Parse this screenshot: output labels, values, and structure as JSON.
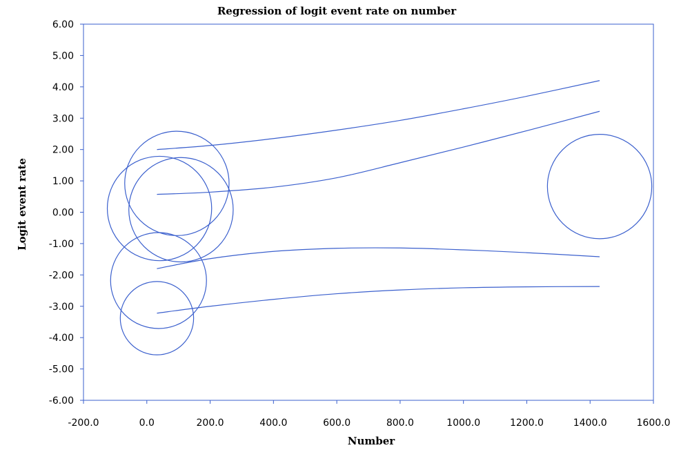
{
  "chart_data": {
    "type": "scatter",
    "title": "Regression of logit event rate on number",
    "xlabel": "Number",
    "ylabel": "Logit event rate",
    "xlim": [
      -200,
      1600
    ],
    "ylim": [
      -6,
      6
    ],
    "x_ticks": [
      "-200.0",
      "0.0",
      "200.0",
      "400.0",
      "600.0",
      "800.0",
      "1000.0",
      "1200.0",
      "1400.0",
      "1600.0"
    ],
    "y_ticks": [
      "6.00",
      "5.00",
      "4.00",
      "3.00",
      "2.00",
      "1.00",
      "0.00",
      "-1.00",
      "-2.00",
      "-3.00",
      "-4.00",
      "-5.00",
      "-6.00"
    ],
    "grid": false,
    "colors": {
      "series": "#3a5fcd",
      "frame": "#3a5fcd",
      "text": "#000000"
    },
    "points": [
      {
        "x": 95,
        "y": 0.92,
        "weight": 1.85
      },
      {
        "x": 40,
        "y": 0.12,
        "weight": 1.85
      },
      {
        "x": 108,
        "y": 0.08,
        "weight": 1.85
      },
      {
        "x": 37,
        "y": -2.18,
        "weight": 1.7
      },
      {
        "x": 32,
        "y": -3.38,
        "weight": 1.3
      },
      {
        "x": 1430,
        "y": 0.82,
        "weight": 1.85
      }
    ],
    "curves": [
      {
        "role": "upper",
        "x": [
          32,
          200,
          400,
          600,
          800,
          1000,
          1200,
          1430
        ],
        "y": [
          2.0,
          2.13,
          2.35,
          2.62,
          2.93,
          3.3,
          3.7,
          4.2
        ]
      },
      {
        "role": "upper",
        "x": [
          32,
          200,
          400,
          600,
          800,
          1000,
          1200,
          1430
        ],
        "y": [
          0.57,
          0.64,
          0.8,
          1.1,
          1.58,
          2.08,
          2.6,
          3.22
        ]
      },
      {
        "role": "lower",
        "x": [
          32,
          200,
          400,
          600,
          800,
          1000,
          1200,
          1430
        ],
        "y": [
          -1.8,
          -1.48,
          -1.25,
          -1.15,
          -1.14,
          -1.2,
          -1.29,
          -1.42
        ]
      },
      {
        "role": "lower",
        "x": [
          32,
          200,
          400,
          600,
          800,
          1000,
          1200,
          1430
        ],
        "y": [
          -3.22,
          -3.0,
          -2.78,
          -2.6,
          -2.48,
          -2.41,
          -2.38,
          -2.37
        ]
      }
    ]
  }
}
